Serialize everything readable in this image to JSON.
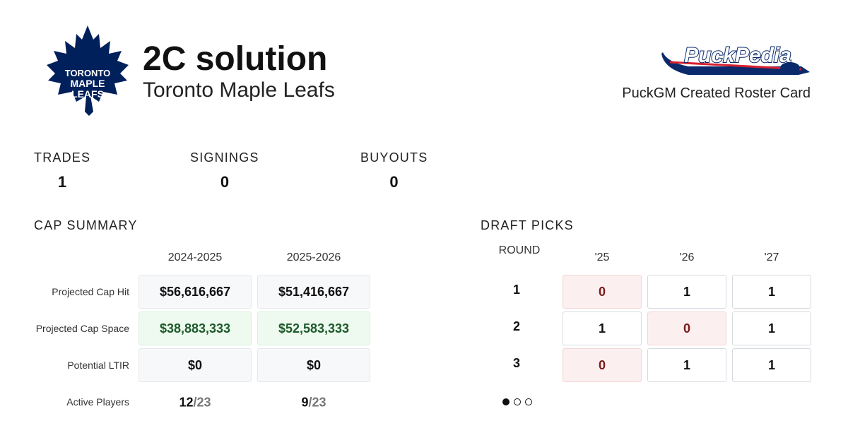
{
  "header": {
    "title": "2C solution",
    "team": "Toronto Maple Leafs",
    "logo_lines": [
      "TORONTO",
      "MAPLE",
      "LEAFS"
    ],
    "brand": "PuckPedia",
    "brand_caption": "PuckGM Created Roster Card"
  },
  "transactions": [
    {
      "label": "TRADES",
      "value": 1
    },
    {
      "label": "SIGNINGS",
      "value": 0
    },
    {
      "label": "BUYOUTS",
      "value": 0
    }
  ],
  "cap_summary": {
    "title": "CAP SUMMARY",
    "columns": [
      "2024-2025",
      "2025-2026"
    ],
    "rows": [
      {
        "label": "Projected Cap Hit",
        "values": [
          "$56,616,667",
          "$51,416,667"
        ]
      },
      {
        "label": "Projected Cap Space",
        "values": [
          "$38,883,333",
          "$52,583,333"
        ]
      },
      {
        "label": "Potential LTIR",
        "values": [
          "$0",
          "$0"
        ]
      }
    ],
    "active_players": {
      "label": "Active Players",
      "values": [
        {
          "count": 12,
          "limit": "/23"
        },
        {
          "count": 9,
          "limit": "/23"
        }
      ]
    }
  },
  "draft_picks": {
    "title": "DRAFT PICKS",
    "round_label": "ROUND",
    "years": [
      "'25",
      "'26",
      "'27"
    ],
    "rounds": [
      {
        "round": 1,
        "picks": [
          0,
          1,
          1
        ]
      },
      {
        "round": 2,
        "picks": [
          1,
          0,
          1
        ]
      },
      {
        "round": 3,
        "picks": [
          0,
          1,
          1
        ]
      }
    ]
  }
}
